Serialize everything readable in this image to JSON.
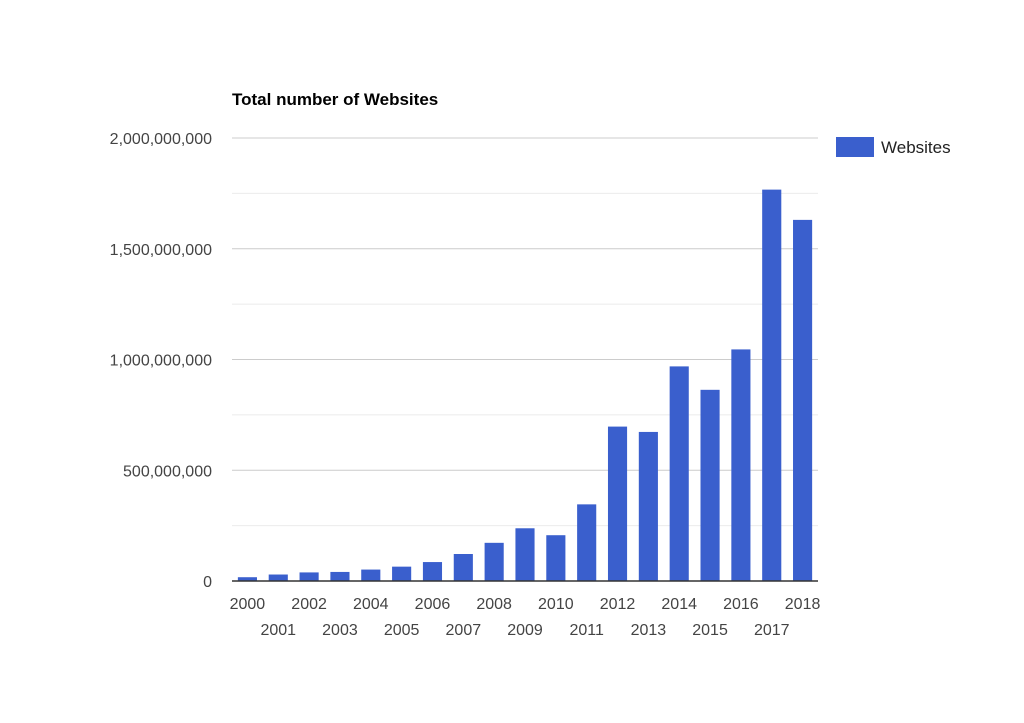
{
  "chart_data": {
    "type": "bar",
    "title": "Total number of Websites",
    "xlabel": "",
    "ylabel": "",
    "categories": [
      "2000",
      "2001",
      "2002",
      "2003",
      "2004",
      "2005",
      "2006",
      "2007",
      "2008",
      "2009",
      "2010",
      "2011",
      "2012",
      "2013",
      "2014",
      "2015",
      "2016",
      "2017",
      "2018"
    ],
    "series": [
      {
        "name": "Websites",
        "color": "#3a5fcd",
        "values": [
          17087182,
          29254370,
          38760373,
          40912332,
          51611646,
          64780617,
          85507314,
          121892559,
          172338726,
          238027855,
          206741990,
          346004403,
          697089489,
          672985183,
          968882453,
          863105652,
          1045534808,
          1766926408,
          1630322579
        ]
      }
    ],
    "ylim": [
      0,
      2000000000
    ],
    "yticks": [
      0,
      500000000,
      1000000000,
      1500000000,
      2000000000
    ],
    "ytick_labels": [
      "0",
      "500,000,000",
      "1,000,000,000",
      "1,500,000,000",
      "2,000,000,000"
    ],
    "grid": true,
    "legend_position": "right"
  }
}
